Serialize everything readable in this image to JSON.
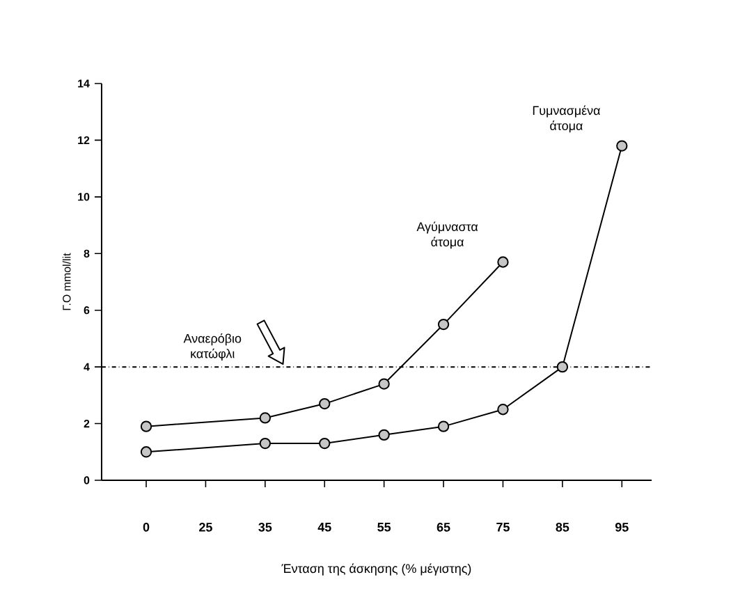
{
  "chart_data": {
    "type": "line",
    "xlabel": "Ένταση της άσκησης (% μέγιστης)",
    "ylabel": "Γ.Ο mmol/lit",
    "categories": [
      "0",
      "25",
      "35",
      "45",
      "55",
      "65",
      "75",
      "85",
      "95"
    ],
    "series": [
      {
        "name": "Αγύμναστα άτομα",
        "color": "#000000",
        "values": [
          1.9,
          null,
          2.2,
          2.7,
          3.4,
          5.5,
          7.7,
          null,
          null
        ]
      },
      {
        "name": "Γυμνασμένα άτομα",
        "color": "#000000",
        "values": [
          1.0,
          null,
          1.3,
          1.3,
          1.6,
          1.9,
          2.5,
          4.0,
          11.8
        ]
      }
    ],
    "ylim": [
      0,
      14
    ],
    "yticks": [
      0,
      2,
      4,
      6,
      8,
      10,
      12,
      14
    ],
    "ref_lines": [
      {
        "axis": "y",
        "value": 4,
        "label": "Αναερόβιο κατώφλι",
        "line_style": "dashdot",
        "color": "#000000"
      }
    ],
    "marker": "circle",
    "line_style": "solid",
    "grid": false
  }
}
